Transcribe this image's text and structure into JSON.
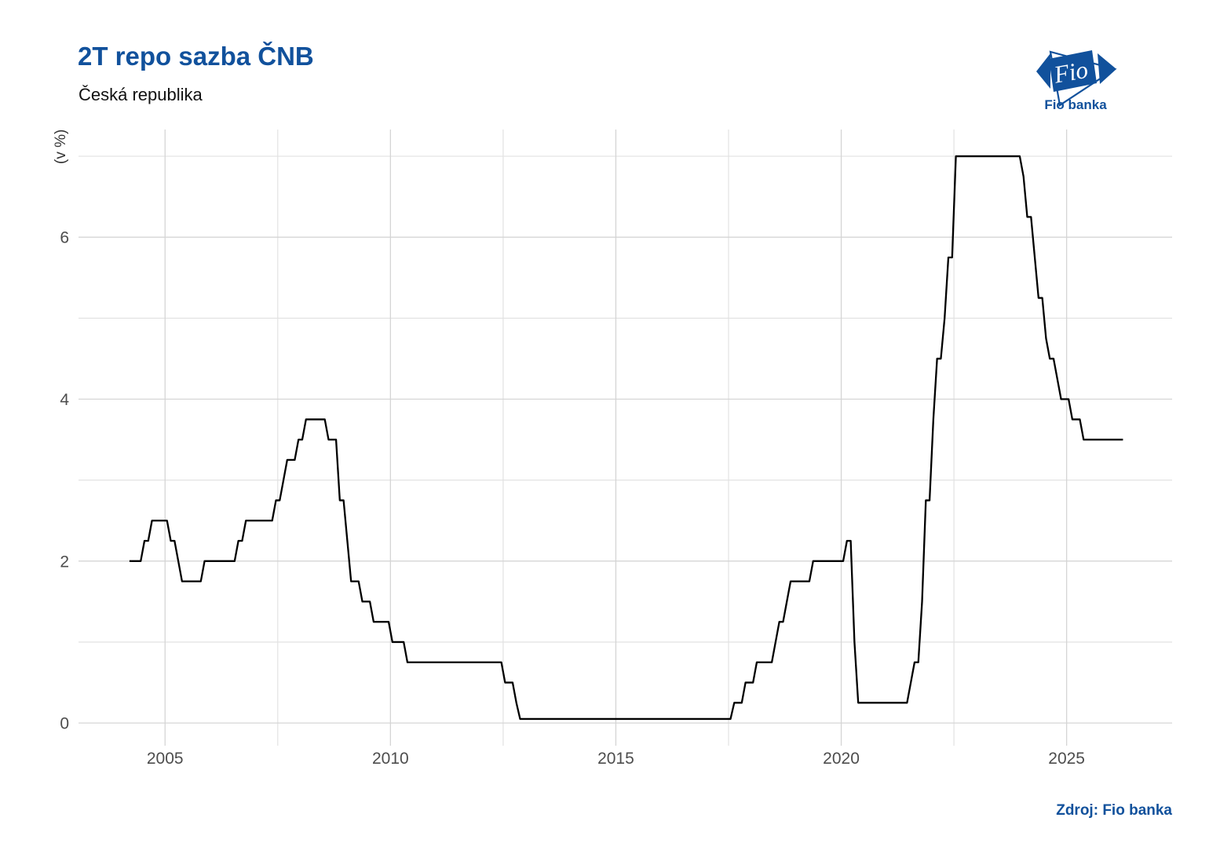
{
  "header": {
    "title": "2T repo sazba ČNB",
    "subtitle": "Česká republika"
  },
  "logo": {
    "mark": "Fio",
    "caption": "Fio banka",
    "color": "#11519c"
  },
  "footer": {
    "source": "Zdroj: Fio banka"
  },
  "chart_data": {
    "type": "line",
    "title": "2T repo sazba ČNB",
    "subtitle": "Česká republika",
    "xlabel": "",
    "ylabel": "(v %)",
    "xlim": [
      2003.08,
      2027.34
    ],
    "ylim": [
      -0.28,
      7.33
    ],
    "x_ticks": [
      2005,
      2010,
      2015,
      2020,
      2025
    ],
    "x_minor": [
      2007.5,
      2012.5,
      2017.5,
      2022.5
    ],
    "y_ticks": [
      0,
      2,
      4,
      6
    ],
    "y_minor": [
      1,
      3,
      5,
      7
    ],
    "grid": true,
    "legend": "none",
    "line_color": "#000000",
    "grid_major_color": "#d5d5d5",
    "grid_minor_color": "#e2e2e2",
    "tick_label_color": "#4d4d4d",
    "axis_title_color": "#333333",
    "series": [
      {
        "name": "2T repo sazba ČNB (v %)",
        "unit": "%",
        "end_x": 2026.25,
        "step_changes": [
          [
            2004.21,
            2.0
          ],
          [
            2004.49,
            2.25
          ],
          [
            2004.66,
            2.5
          ],
          [
            2005.08,
            2.25
          ],
          [
            2005.25,
            2.0
          ],
          [
            2005.33,
            1.75
          ],
          [
            2005.83,
            2.0
          ],
          [
            2006.57,
            2.25
          ],
          [
            2006.75,
            2.5
          ],
          [
            2007.42,
            2.75
          ],
          [
            2007.57,
            3.0
          ],
          [
            2007.67,
            3.25
          ],
          [
            2007.92,
            3.5
          ],
          [
            2008.11,
            3.75
          ],
          [
            2008.6,
            3.5
          ],
          [
            2008.85,
            2.75
          ],
          [
            2008.96,
            2.25
          ],
          [
            2009.1,
            1.75
          ],
          [
            2009.36,
            1.5
          ],
          [
            2009.6,
            1.25
          ],
          [
            2009.96,
            1.0
          ],
          [
            2010.35,
            0.75
          ],
          [
            2012.49,
            0.5
          ],
          [
            2012.75,
            0.25
          ],
          [
            2012.84,
            0.05
          ],
          [
            2017.59,
            0.25
          ],
          [
            2017.84,
            0.5
          ],
          [
            2018.09,
            0.75
          ],
          [
            2018.49,
            1.0
          ],
          [
            2018.59,
            1.25
          ],
          [
            2018.74,
            1.5
          ],
          [
            2018.84,
            1.75
          ],
          [
            2019.34,
            2.0
          ],
          [
            2020.1,
            2.25
          ],
          [
            2020.21,
            1.75
          ],
          [
            2020.24,
            1.0
          ],
          [
            2020.36,
            0.25
          ],
          [
            2021.48,
            0.5
          ],
          [
            2021.6,
            0.75
          ],
          [
            2021.75,
            1.5
          ],
          [
            2021.85,
            2.75
          ],
          [
            2021.98,
            3.75
          ],
          [
            2022.09,
            4.5
          ],
          [
            2022.25,
            5.0
          ],
          [
            2022.34,
            5.75
          ],
          [
            2022.47,
            7.0
          ],
          [
            2023.98,
            6.75
          ],
          [
            2024.11,
            6.25
          ],
          [
            2024.22,
            5.75
          ],
          [
            2024.34,
            5.25
          ],
          [
            2024.49,
            4.75
          ],
          [
            2024.59,
            4.5
          ],
          [
            2024.74,
            4.25
          ],
          [
            2024.85,
            4.0
          ],
          [
            2025.1,
            3.75
          ],
          [
            2025.35,
            3.5
          ]
        ]
      }
    ]
  }
}
